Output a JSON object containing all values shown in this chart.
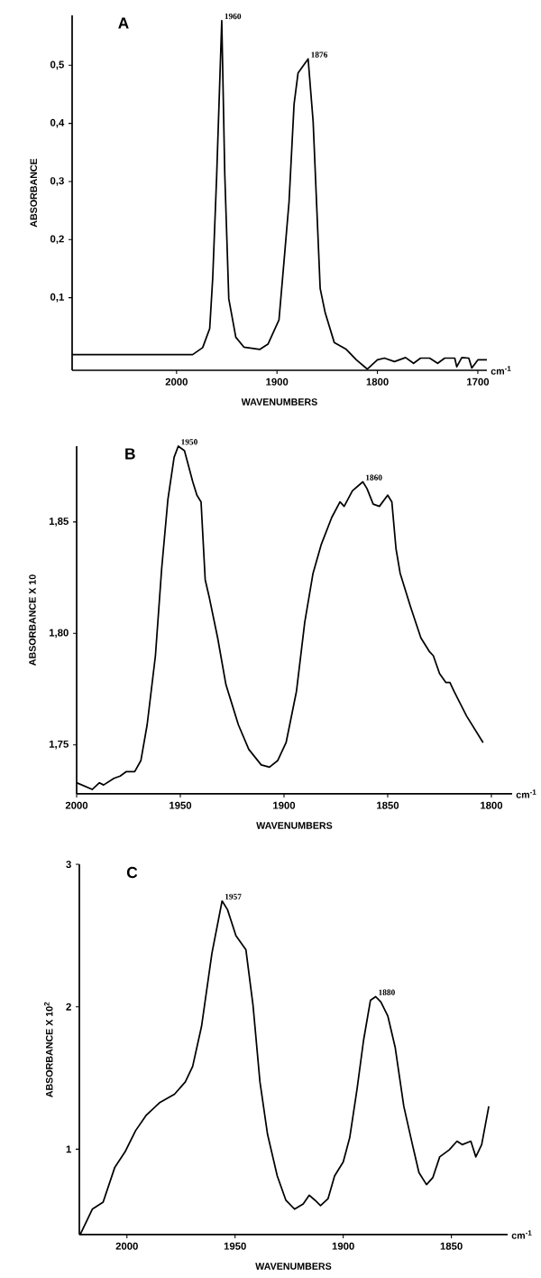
{
  "chart_data": [
    {
      "type": "line",
      "title": "A",
      "xlabel": "WAVENUMBERS",
      "ylabel": "ABSORBANCE",
      "color": "#000000",
      "xlim": [
        2104,
        1691
      ],
      "ylim": [
        -0.025,
        0.586
      ],
      "xticks": [
        2000,
        1900,
        1800,
        1700
      ],
      "yticks": [
        {
          "value": 0.1,
          "label": "0,1"
        },
        {
          "value": 0.2,
          "label": "0,2"
        },
        {
          "value": 0.3,
          "label": "0,3"
        },
        {
          "value": 0.4,
          "label": "0,4"
        },
        {
          "value": 0.5,
          "label": "0,5"
        }
      ],
      "x": [
        2104,
        1984,
        1974,
        1967,
        1964,
        1960,
        1955,
        1952,
        1948,
        1941,
        1933,
        1917,
        1909,
        1898,
        1893,
        1888,
        1883,
        1879,
        1869,
        1864,
        1857,
        1852,
        1843,
        1831,
        1821,
        1810,
        1800,
        1793,
        1783,
        1772,
        1764,
        1757,
        1748,
        1740,
        1733,
        1723,
        1721,
        1716,
        1709,
        1706,
        1700,
        1691
      ],
      "values": [
        0.002,
        0.002,
        0.014,
        0.047,
        0.134,
        0.313,
        0.577,
        0.313,
        0.098,
        0.032,
        0.015,
        0.011,
        0.02,
        0.062,
        0.163,
        0.265,
        0.433,
        0.487,
        0.511,
        0.403,
        0.116,
        0.074,
        0.023,
        0.011,
        -0.007,
        -0.023,
        -0.007,
        -0.004,
        -0.01,
        -0.003,
        -0.013,
        -0.004,
        -0.004,
        -0.013,
        -0.004,
        -0.004,
        -0.019,
        -0.003,
        -0.004,
        -0.021,
        -0.007,
        -0.007
      ],
      "annotations": [
        {
          "text": "1960",
          "x": 1955,
          "y": 0.577
        },
        {
          "text": "1876",
          "x": 1869,
          "y": 0.511
        },
        "cm$^{-1}$"
      ]
    },
    {
      "type": "line",
      "title": "B",
      "xlabel": "WAVENUMBERS",
      "ylabel": "ABSORBANCE X 10",
      "color": "#000000",
      "xlim": [
        2000,
        1790
      ],
      "ylim": [
        1.728,
        1.884
      ],
      "xticks": [
        2000,
        1950,
        1900,
        1850,
        1800
      ],
      "yticks": [
        {
          "value": 1.75,
          "label": "1,75"
        },
        {
          "value": 1.8,
          "label": "1,80"
        },
        {
          "value": 1.85,
          "label": "1,85"
        }
      ],
      "x": [
        2000,
        1997.5,
        1992.5,
        1989,
        1987,
        1982,
        1979,
        1976,
        1972,
        1969,
        1966,
        1962,
        1959,
        1956,
        1953,
        1951,
        1948,
        1944,
        1942,
        1940,
        1938,
        1936,
        1932,
        1928,
        1922,
        1917,
        1911,
        1907,
        1903,
        1899,
        1894,
        1890,
        1886,
        1882,
        1877,
        1873,
        1871,
        1867,
        1862,
        1860,
        1857,
        1854,
        1850,
        1848,
        1846,
        1844,
        1839,
        1834,
        1830,
        1828,
        1825,
        1822,
        1820,
        1818,
        1812,
        1804
      ],
      "values": [
        1.733,
        1.732,
        1.73,
        1.733,
        1.732,
        1.735,
        1.736,
        1.738,
        1.738,
        1.743,
        1.759,
        1.79,
        1.829,
        1.86,
        1.879,
        1.884,
        1.882,
        1.868,
        1.862,
        1.859,
        1.824,
        1.816,
        1.798,
        1.777,
        1.759,
        1.748,
        1.741,
        1.74,
        1.743,
        1.751,
        1.774,
        1.805,
        1.827,
        1.84,
        1.852,
        1.859,
        1.857,
        1.864,
        1.868,
        1.865,
        1.858,
        1.857,
        1.862,
        1.859,
        1.838,
        1.827,
        1.812,
        1.798,
        1.792,
        1.79,
        1.782,
        1.778,
        1.778,
        1.774,
        1.763,
        1.751
      ],
      "annotations": [
        {
          "text": "1950",
          "x": 1951,
          "y": 1.884
        },
        {
          "text": "1860",
          "x": 1862,
          "y": 1.868
        },
        "cm$^{-1}$"
      ]
    },
    {
      "type": "line",
      "title": "C",
      "xlabel": "WAVENUMBERS",
      "ylabel": "ABSORBANCE X 10$^{2}$",
      "color": "#000000",
      "xlim": [
        2022,
        1824
      ],
      "ylim": [
        0.4,
        3
      ],
      "xticks": [
        2000,
        1950,
        1900,
        1850
      ],
      "yticks": [
        1,
        2,
        3
      ],
      "x": [
        2021.6,
        2016,
        2011,
        2005.6,
        2000.8,
        1996,
        1991,
        1985,
        1978,
        1973,
        1969.6,
        1965.5,
        1960.7,
        1956,
        1953.5,
        1949.6,
        1945,
        1941.7,
        1938.5,
        1935,
        1930.5,
        1926.5,
        1922.5,
        1918.5,
        1915.7,
        1913,
        1910.5,
        1907,
        1904,
        1900,
        1897,
        1893.6,
        1890.6,
        1887.4,
        1885,
        1882.6,
        1879.4,
        1876,
        1872,
        1868,
        1865,
        1861.5,
        1858.6,
        1855.4,
        1851,
        1847.4,
        1845,
        1841,
        1838.7,
        1836,
        1832.7
      ],
      "values": [
        0.4,
        0.579,
        0.628,
        0.873,
        0.983,
        1.13,
        1.24,
        1.325,
        1.386,
        1.472,
        1.582,
        1.863,
        2.376,
        2.743,
        2.682,
        2.499,
        2.401,
        2.01,
        1.472,
        1.105,
        0.812,
        0.641,
        0.579,
        0.616,
        0.677,
        0.641,
        0.604,
        0.653,
        0.812,
        0.91,
        1.081,
        1.423,
        1.765,
        2.046,
        2.071,
        2.034,
        1.936,
        1.716,
        1.301,
        1.032,
        0.836,
        0.751,
        0.8,
        0.946,
        0.995,
        1.056,
        1.032,
        1.056,
        0.946,
        1.032,
        1.301
      ],
      "annotations": [
        {
          "text": "1957",
          "x": 1956,
          "y": 2.743
        },
        {
          "text": "1880",
          "x": 1885,
          "y": 2.071
        },
        "cm$^{-1}$"
      ]
    }
  ]
}
